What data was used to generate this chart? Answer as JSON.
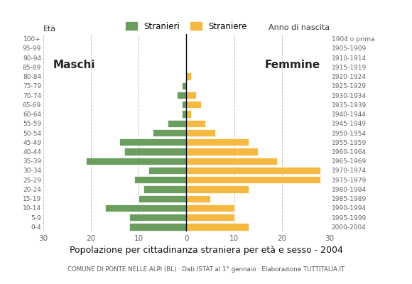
{
  "age_groups": [
    "0-4",
    "5-9",
    "10-14",
    "15-19",
    "20-24",
    "25-29",
    "30-34",
    "35-39",
    "40-44",
    "45-49",
    "50-54",
    "55-59",
    "60-64",
    "65-69",
    "70-74",
    "75-79",
    "80-84",
    "85-89",
    "90-94",
    "95-99",
    "100+"
  ],
  "birth_years": [
    "2000-2004",
    "1995-1999",
    "1990-1994",
    "1985-1989",
    "1980-1984",
    "1975-1979",
    "1970-1974",
    "1965-1969",
    "1960-1964",
    "1955-1959",
    "1950-1954",
    "1945-1949",
    "1940-1944",
    "1935-1939",
    "1930-1934",
    "1925-1929",
    "1920-1924",
    "1915-1919",
    "1910-1914",
    "1905-1909",
    "1904 o prima"
  ],
  "males": [
    12,
    12,
    17,
    10,
    9,
    11,
    8,
    21,
    13,
    14,
    7,
    4,
    1,
    1,
    2,
    1,
    0,
    0,
    0,
    0,
    0
  ],
  "females": [
    13,
    10,
    10,
    5,
    13,
    28,
    28,
    19,
    15,
    13,
    6,
    4,
    1,
    3,
    2,
    0,
    1,
    0,
    0,
    0,
    0
  ],
  "male_color": "#6b9e5e",
  "female_color": "#f5b942",
  "background_color": "#ffffff",
  "grid_color": "#c0c0c0",
  "title": "Popolazione per cittadinanza straniera per età e sesso - 2004",
  "subtitle": "COMUNE DI PONTE NELLE ALPI (BL) · Dati ISTAT al 1° gennaio · Elaborazione TUTTITALIA.IT",
  "legend_male": "Stranieri",
  "legend_female": "Straniere",
  "label_eta": "Età",
  "label_anno": "Anno di nascita",
  "label_maschi": "Maschi",
  "label_femmine": "Femmine",
  "xlim": 30
}
